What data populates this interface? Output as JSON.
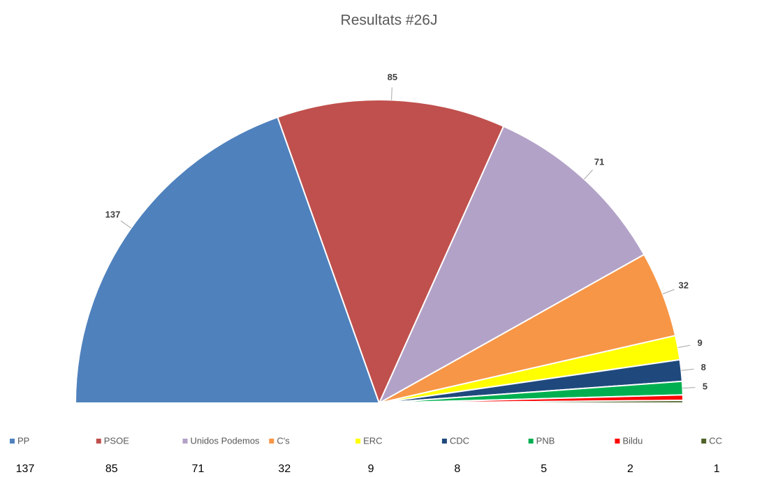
{
  "chart_data": {
    "type": "pie",
    "semicircle": true,
    "title": "Resultats #26J",
    "categories": [
      "PP",
      "PSOE",
      "Unidos Podemos",
      "C's",
      "ERC",
      "CDC",
      "PNB",
      "Bildu",
      "CC"
    ],
    "values": [
      137,
      85,
      71,
      32,
      9,
      8,
      5,
      2,
      1
    ],
    "colors": [
      "#4f81bd",
      "#c0504d",
      "#b3a2c7",
      "#f79646",
      "#ffff00",
      "#1f497d",
      "#00b050",
      "#ff0000",
      "#4f6228"
    ],
    "data_labels": [
      true,
      true,
      true,
      true,
      true,
      true,
      true,
      false,
      false
    ],
    "legend": "bottom"
  }
}
